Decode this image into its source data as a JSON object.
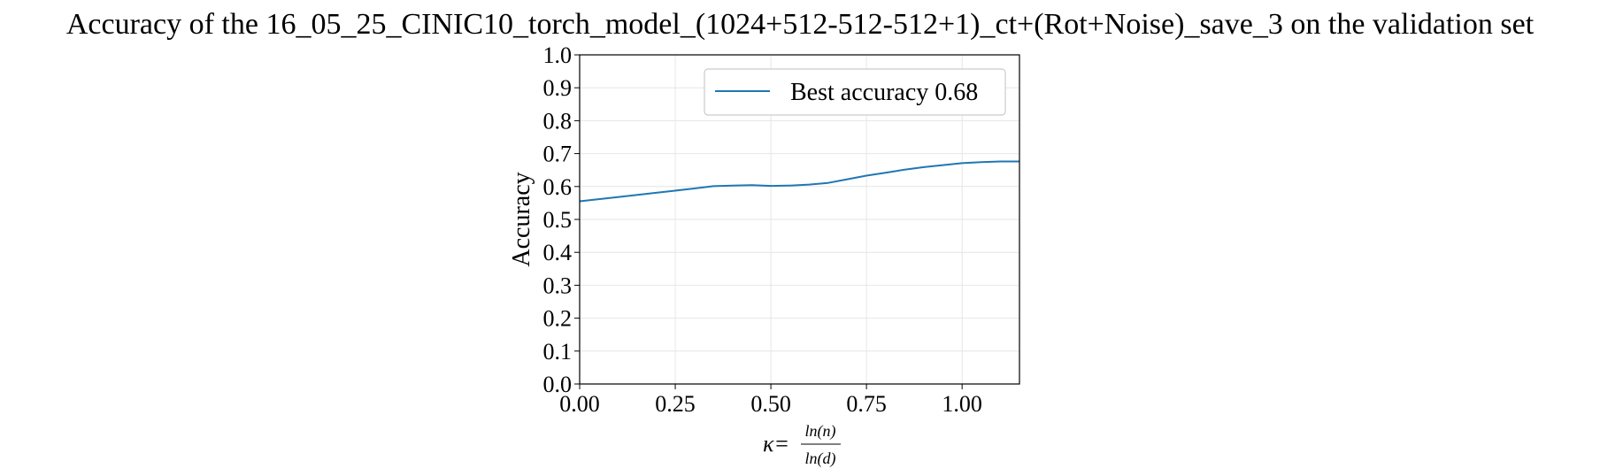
{
  "chart_data": {
    "type": "line",
    "title": "Accuracy of the 16_05_25_CINIC10_torch_model_(1024+512-512-512+1)_ct+(Rot+Noise)_save_3 on the validation set",
    "ylabel": "Accuracy",
    "xlabel": {
      "prefix": "κ=",
      "numerator": "ln(n)",
      "denominator": "ln(d)"
    },
    "xlim": [
      0.0,
      1.15
    ],
    "ylim": [
      0.0,
      1.0
    ],
    "x_ticks": [
      0.0,
      0.25,
      0.5,
      0.75,
      1.0
    ],
    "x_tick_labels": [
      "0.00",
      "0.25",
      "0.50",
      "0.75",
      "1.00"
    ],
    "y_ticks": [
      0.0,
      0.1,
      0.2,
      0.3,
      0.4,
      0.5,
      0.6,
      0.7,
      0.8,
      0.9,
      1.0
    ],
    "y_tick_labels": [
      "0.0",
      "0.1",
      "0.2",
      "0.3",
      "0.4",
      "0.5",
      "0.6",
      "0.7",
      "0.8",
      "0.9",
      "1.0"
    ],
    "grid": true,
    "legend_position": "top-right",
    "series": [
      {
        "name": "Best accuracy 0.68",
        "color": "#1f77b4",
        "x": [
          0.0,
          0.1,
          0.2,
          0.3,
          0.35,
          0.4,
          0.45,
          0.5,
          0.55,
          0.6,
          0.65,
          0.7,
          0.75,
          0.8,
          0.85,
          0.9,
          0.95,
          1.0,
          1.05,
          1.1,
          1.15
        ],
        "y": [
          0.555,
          0.568,
          0.581,
          0.594,
          0.601,
          0.603,
          0.604,
          0.602,
          0.603,
          0.606,
          0.611,
          0.622,
          0.633,
          0.642,
          0.651,
          0.659,
          0.665,
          0.671,
          0.674,
          0.676,
          0.676
        ]
      }
    ]
  }
}
